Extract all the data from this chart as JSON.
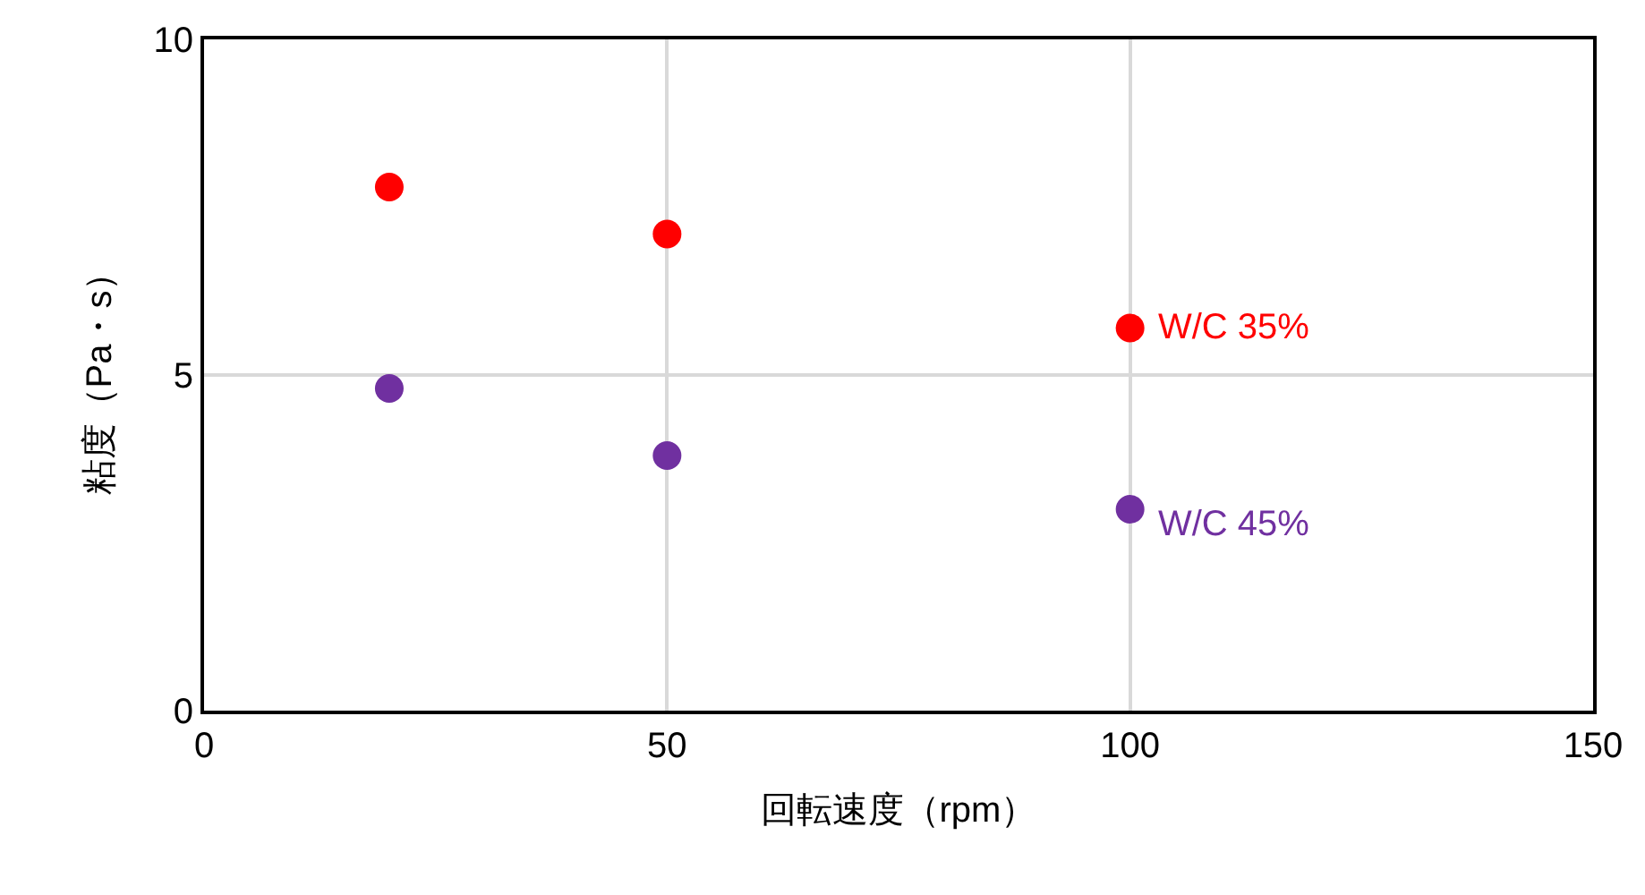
{
  "chart_data": {
    "type": "scatter",
    "xlabel": "回転速度（rpm）",
    "ylabel": "粘度（Pa・s）",
    "x": [
      20,
      50,
      100
    ],
    "series": [
      {
        "name": "W/C 35%",
        "color": "#ff0000",
        "values": [
          7.8,
          7.1,
          5.7
        ]
      },
      {
        "name": "W/C 45%",
        "color": "#7030a0",
        "values": [
          4.8,
          3.8,
          3.0
        ]
      }
    ],
    "xlim": [
      0,
      150
    ],
    "xticks": [
      0,
      50,
      100,
      150
    ],
    "ylim": [
      0,
      10
    ],
    "yticks": [
      0,
      5,
      10
    ],
    "grid": true,
    "legend": false,
    "marker": "circle"
  }
}
